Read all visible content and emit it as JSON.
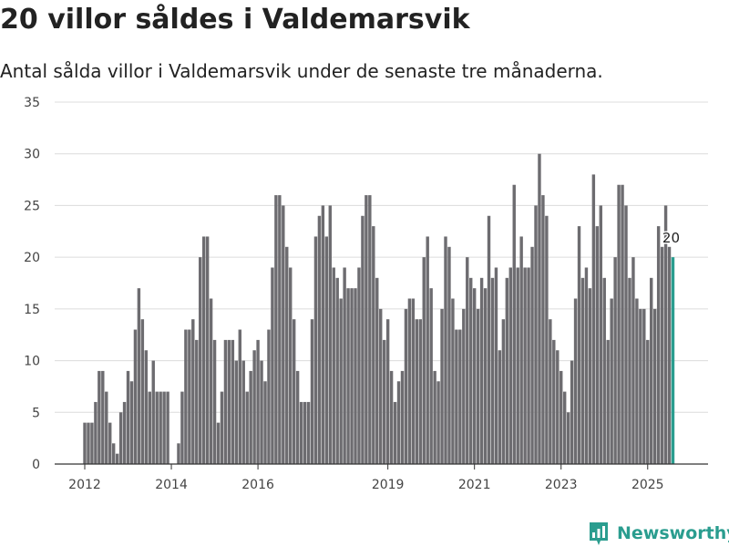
{
  "page": {
    "title": "20 villor såldes i Valdemarsvik",
    "subtitle": "Antal sålda villor i Valdemarsvik under de senaste tre månaderna."
  },
  "brand": {
    "name": "Newsworthy",
    "icon": "bar-chart-logo-icon",
    "color": "#2a9d8f"
  },
  "chart_data": {
    "type": "bar",
    "start": "2012-01",
    "xticks": [
      {
        "label": "2012",
        "value": "2012-01"
      },
      {
        "label": "2014",
        "value": "2014-01"
      },
      {
        "label": "2016",
        "value": "2016-01"
      },
      {
        "label": "2019",
        "value": "2019-01"
      },
      {
        "label": "2021",
        "value": "2021-01"
      },
      {
        "label": "2023",
        "value": "2023-01"
      },
      {
        "label": "2025",
        "value": "2025-01"
      }
    ],
    "ylim": [
      0,
      35
    ],
    "yticks": [
      0,
      5,
      10,
      15,
      20,
      25,
      30,
      35
    ],
    "grid": true,
    "bar_color": "#6d6c70",
    "highlight_color": "#2a9d8f",
    "highlight_label": "20",
    "values": [
      4,
      4,
      4,
      6,
      9,
      9,
      7,
      4,
      2,
      1,
      5,
      6,
      9,
      8,
      13,
      17,
      14,
      11,
      7,
      10,
      7,
      7,
      7,
      7,
      0,
      0,
      2,
      7,
      13,
      13,
      14,
      12,
      20,
      22,
      22,
      16,
      12,
      4,
      7,
      12,
      12,
      12,
      10,
      13,
      10,
      7,
      9,
      11,
      12,
      10,
      8,
      13,
      19,
      26,
      26,
      25,
      21,
      19,
      14,
      9,
      6,
      6,
      6,
      14,
      22,
      24,
      25,
      22,
      25,
      19,
      18,
      16,
      19,
      17,
      17,
      17,
      19,
      24,
      26,
      26,
      23,
      18,
      15,
      12,
      14,
      9,
      6,
      8,
      9,
      15,
      16,
      16,
      14,
      14,
      20,
      22,
      17,
      9,
      8,
      15,
      22,
      21,
      16,
      13,
      13,
      15,
      20,
      18,
      17,
      15,
      18,
      17,
      24,
      18,
      19,
      11,
      14,
      18,
      19,
      27,
      19,
      22,
      19,
      19,
      21,
      25,
      30,
      26,
      24,
      14,
      12,
      11,
      9,
      7,
      5,
      10,
      16,
      23,
      18,
      19,
      17,
      28,
      23,
      25,
      18,
      12,
      16,
      20,
      27,
      27,
      25,
      18,
      20,
      16,
      15,
      15,
      12,
      18,
      15,
      23,
      21,
      25,
      21,
      20
    ]
  }
}
